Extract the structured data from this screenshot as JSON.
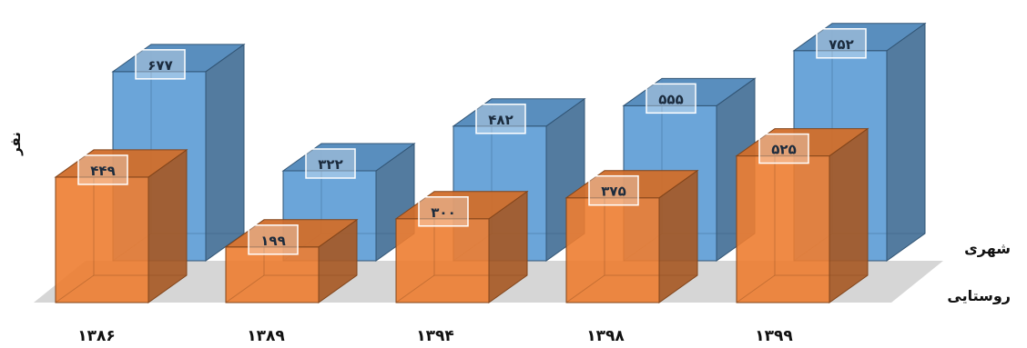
{
  "chart_data": {
    "type": "bar",
    "categories": [
      "۱۳۸۶",
      "۱۳۸۹",
      "۱۳۹۴",
      "۱۳۹۸",
      "۱۳۹۹"
    ],
    "series": [
      {
        "name": "شهری",
        "values": [
          677,
          322,
          482,
          555,
          752
        ],
        "display": [
          "۶۷۷",
          "۳۲۲",
          "۴۸۲",
          "۵۵۵",
          "۷۵۲"
        ],
        "color": "#5b9bd5"
      },
      {
        "name": "روستایی",
        "values": [
          449,
          199,
          300,
          375,
          525
        ],
        "display": [
          "۴۴۹",
          "۱۹۹",
          "۳۰۰",
          "۳۷۵",
          "۵۲۵"
        ],
        "color": "#ed7d31"
      }
    ],
    "ylabel": "نفر",
    "ylim": [
      0,
      800
    ],
    "grid": false,
    "style": "3d-column"
  }
}
